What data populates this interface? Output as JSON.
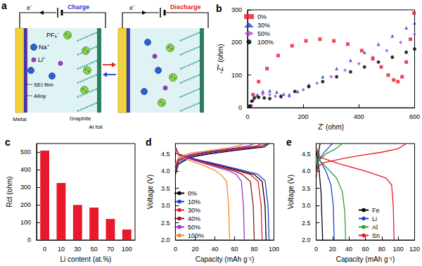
{
  "diagram": {
    "label": "a",
    "electron": "e⁻",
    "modes": [
      {
        "title": "Charge",
        "color": "#1f3fd0"
      },
      {
        "title": "Discharge",
        "color": "#e0201a"
      }
    ],
    "species": {
      "anion": "PF₆⁻",
      "li": "Li⁺",
      "na": "Na⁺"
    },
    "parts": {
      "metal": "Metal",
      "sei": "SEI film",
      "alloy": "Alloy",
      "graphite": "Graphite",
      "foil": "Al foil"
    }
  },
  "chart_data": [
    {
      "type": "scatter",
      "title": "b",
      "x_label": "Z' (ohm)",
      "y_label": "-Z'' (ohm)",
      "xlim": [
        0,
        600
      ],
      "xticks": [
        0,
        200,
        400,
        600
      ],
      "ylim": [
        0,
        300
      ],
      "yticks": [
        0,
        100,
        200,
        300
      ],
      "grid": false,
      "legend": "top-left",
      "series": [
        {
          "name": "0%",
          "color": "#e8192c",
          "marker": "square",
          "x": [
            12,
            20,
            40,
            70,
            110,
            160,
            210,
            260,
            310,
            360,
            410,
            450,
            480,
            505,
            525,
            540,
            555,
            570,
            585,
            598
          ],
          "values": [
            5,
            40,
            80,
            120,
            160,
            190,
            205,
            210,
            205,
            195,
            175,
            150,
            125,
            100,
            85,
            80,
            95,
            140,
            210,
            290
          ]
        },
        {
          "name": "30%",
          "color": "#1f3fd0",
          "marker": "triangle",
          "x": [
            10,
            20,
            35,
            55,
            80,
            105,
            130,
            150,
            180,
            220,
            270,
            320,
            370,
            420,
            470,
            520,
            570,
            600
          ],
          "values": [
            5,
            25,
            40,
            50,
            52,
            48,
            42,
            40,
            50,
            70,
            95,
            120,
            145,
            170,
            195,
            220,
            245,
            260
          ]
        },
        {
          "name": "50%",
          "color": "#b040e0",
          "marker": "diamond",
          "x": [
            10,
            20,
            35,
            55,
            80,
            100,
            120,
            150,
            200,
            250,
            300,
            350,
            400,
            450,
            500,
            550,
            600
          ],
          "values": [
            5,
            22,
            35,
            42,
            40,
            35,
            32,
            35,
            55,
            75,
            95,
            115,
            135,
            155,
            175,
            200,
            225
          ]
        },
        {
          "name": "100%",
          "color": "#000000",
          "marker": "circle",
          "x": [
            8,
            15,
            25,
            40,
            60,
            80,
            120,
            170,
            220,
            270,
            320,
            370,
            420,
            470,
            520,
            570,
            600
          ],
          "values": [
            5,
            20,
            30,
            32,
            30,
            28,
            35,
            50,
            65,
            80,
            95,
            110,
            125,
            140,
            155,
            170,
            180
          ]
        }
      ]
    },
    {
      "type": "bar",
      "title": "c",
      "x_label": "Li content (at.%)",
      "y_label": "Rct (ohm)",
      "categories": [
        "0",
        "10",
        "30",
        "50",
        "70",
        "100"
      ],
      "values": [
        510,
        325,
        200,
        185,
        120,
        60
      ],
      "color": "#e8192c",
      "ylim": [
        0,
        550
      ],
      "yticks": [
        0,
        100,
        200,
        300,
        400,
        500
      ],
      "grid": false
    },
    {
      "type": "line",
      "title": "d",
      "x_label": "Capacity (mAh g⁻¹)",
      "y_label": "Voltage (V)",
      "xlim": [
        0,
        100
      ],
      "xticks": [
        0,
        20,
        40,
        60,
        80,
        100
      ],
      "ylim": [
        2.0,
        4.8
      ],
      "yticks": [
        {
          "value": 2.0,
          "label": "2.0"
        },
        2.5,
        {
          "value": 3.0,
          "label": "3.0"
        },
        3.5,
        {
          "value": 4.0,
          "label": "4.0"
        },
        4.5
      ],
      "grid": false,
      "legend": "bottom-left",
      "series": [
        {
          "name": "0%",
          "color": "#000000",
          "x": [
            0,
            3,
            15,
            35,
            60,
            90,
            95,
            null,
            0,
            3,
            20,
            40,
            60,
            80,
            88,
            91,
            92
          ],
          "values": [
            3.9,
            4.2,
            4.4,
            4.5,
            4.6,
            4.7,
            4.8,
            null,
            4.7,
            4.5,
            4.35,
            4.2,
            4.05,
            3.9,
            3.7,
            3.0,
            2.0
          ]
        },
        {
          "name": "10%",
          "color": "#1f3fd0",
          "x": [
            0,
            3,
            15,
            35,
            60,
            88,
            93,
            null,
            0,
            3,
            20,
            40,
            60,
            83,
            91,
            94,
            95
          ],
          "values": [
            4.0,
            4.25,
            4.42,
            4.52,
            4.62,
            4.72,
            4.8,
            null,
            4.7,
            4.5,
            4.35,
            4.22,
            4.08,
            3.92,
            3.72,
            3.0,
            2.0
          ]
        },
        {
          "name": "30%",
          "color": "#e8192c",
          "x": [
            0,
            3,
            15,
            35,
            60,
            87,
            92,
            null,
            0,
            3,
            20,
            40,
            60,
            76,
            84,
            87,
            88
          ],
          "values": [
            4.05,
            4.3,
            4.45,
            4.55,
            4.63,
            4.72,
            4.8,
            null,
            4.68,
            4.5,
            4.33,
            4.18,
            4.03,
            3.9,
            3.7,
            3.0,
            2.0
          ]
        },
        {
          "name": "40%",
          "color": "#8b1a1a",
          "x": [
            0,
            3,
            15,
            35,
            60,
            83,
            88,
            null,
            0,
            3,
            20,
            40,
            60,
            68,
            76,
            79,
            80
          ],
          "values": [
            4.1,
            4.32,
            4.46,
            4.56,
            4.65,
            4.73,
            4.8,
            null,
            4.66,
            4.48,
            4.32,
            4.16,
            4.0,
            3.9,
            3.7,
            3.0,
            2.0
          ]
        },
        {
          "name": "50%",
          "color": "#9b30d0",
          "x": [
            0,
            3,
            15,
            35,
            60,
            75,
            80,
            null,
            0,
            3,
            20,
            40,
            55,
            62,
            67,
            69,
            70
          ],
          "values": [
            4.15,
            4.35,
            4.48,
            4.58,
            4.67,
            4.74,
            4.8,
            null,
            4.65,
            4.47,
            4.3,
            4.13,
            4.0,
            3.9,
            3.7,
            3.0,
            2.0
          ]
        },
        {
          "name": "100%",
          "color": "#f08c1a",
          "x": [
            0,
            3,
            15,
            35,
            55,
            65,
            70,
            null,
            0,
            3,
            15,
            30,
            40,
            46,
            52,
            54,
            55
          ],
          "values": [
            4.2,
            4.4,
            4.52,
            4.6,
            4.68,
            4.74,
            4.8,
            null,
            4.6,
            4.45,
            4.3,
            4.15,
            4.02,
            3.9,
            3.7,
            3.0,
            2.0
          ]
        }
      ]
    },
    {
      "type": "line",
      "title": "e",
      "x_label": "Capacity (mAh g⁻¹)",
      "y_label": "Voltage (V)",
      "xlim": [
        0,
        120
      ],
      "xticks": [
        0,
        20,
        40,
        60,
        80,
        100,
        120
      ],
      "ylim": [
        2.0,
        4.8
      ],
      "yticks": [
        {
          "value": 2.0,
          "label": "2.0"
        },
        2.5,
        {
          "value": 3.0,
          "label": "3.0"
        },
        3.5,
        {
          "value": 4.0,
          "label": "4.0"
        },
        4.5
      ],
      "grid": false,
      "legend": "bottom",
      "series": [
        {
          "name": "Fe",
          "color": "#000000",
          "x": [
            0,
            2,
            4,
            5,
            null,
            0,
            3,
            6,
            8
          ],
          "values": [
            3.8,
            4.3,
            4.7,
            4.8,
            null,
            4.7,
            4.2,
            3.4,
            2.0
          ]
        },
        {
          "name": "Li",
          "color": "#1f3fd0",
          "x": [
            0,
            3,
            10,
            16,
            20,
            null,
            0,
            5,
            12,
            18,
            21,
            22
          ],
          "values": [
            3.9,
            4.3,
            4.55,
            4.7,
            4.8,
            null,
            4.6,
            4.3,
            4.0,
            3.6,
            3.0,
            2.0
          ]
        },
        {
          "name": "Al",
          "color": "#2ca02c",
          "x": [
            0,
            3,
            12,
            24,
            32,
            null,
            0,
            5,
            15,
            25,
            32,
            35,
            36
          ],
          "values": [
            3.9,
            4.3,
            4.5,
            4.65,
            4.8,
            null,
            4.65,
            4.3,
            4.05,
            3.8,
            3.4,
            2.8,
            2.0
          ]
        },
        {
          "name": "Sn",
          "color": "#e8192c",
          "x": [
            0,
            3,
            10,
            40,
            80,
            100,
            110,
            null,
            0,
            5,
            30,
            60,
            85,
            92,
            94,
            95
          ],
          "values": [
            3.9,
            4.15,
            4.25,
            4.4,
            4.55,
            4.65,
            4.8,
            null,
            4.7,
            4.4,
            4.2,
            4.0,
            3.8,
            3.6,
            3.0,
            2.0
          ]
        }
      ]
    }
  ]
}
